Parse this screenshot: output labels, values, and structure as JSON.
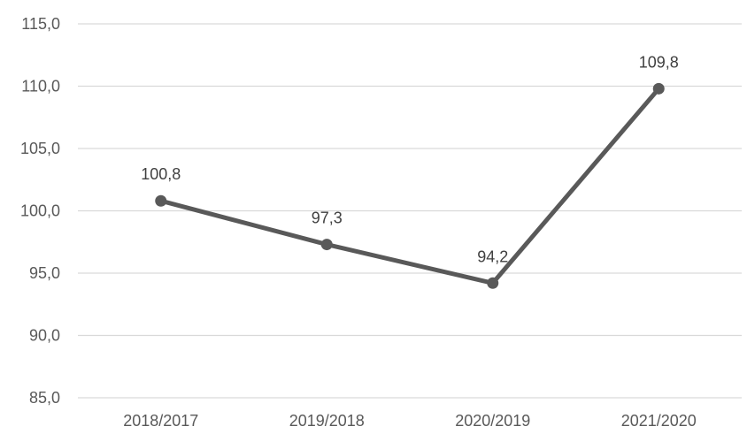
{
  "chart_data": {
    "type": "line",
    "title": "",
    "xlabel": "",
    "ylabel": "",
    "categories": [
      "2018/2017",
      "2019/2018",
      "2020/2019",
      "2021/2020"
    ],
    "series": [
      {
        "values": [
          100.8,
          97.3,
          94.2,
          109.8
        ],
        "data_labels": [
          "100,8",
          "97,3",
          "94,2",
          "109,8"
        ],
        "color": "#595959"
      }
    ],
    "ylim": [
      85,
      115
    ],
    "y_ticks": [
      85,
      90,
      95,
      100,
      105,
      110,
      115
    ],
    "y_tick_labels": [
      "85,0",
      "90,0",
      "95,0",
      "100,0",
      "105,0",
      "110,0",
      "115,0"
    ],
    "grid": true,
    "grid_color": "#d9d9d9",
    "legend": "none"
  }
}
